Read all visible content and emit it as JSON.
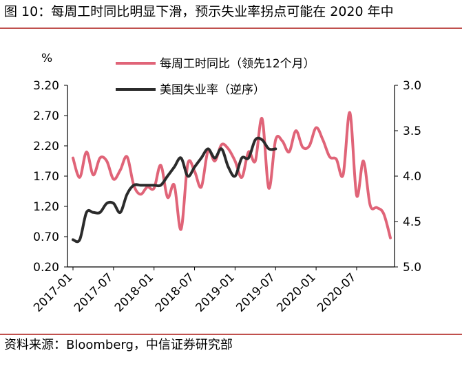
{
  "title": "图 10：每周工时同比明显下滑，预示失业率拐点可能在 2020 年中",
  "source": "资料来源：Bloomberg，中信证券研究部",
  "chart_data": {
    "type": "line",
    "left_unit": "%",
    "x_ticks": [
      "2017-01",
      "2017-07",
      "2018-01",
      "2018-07",
      "2019-01",
      "2019-07",
      "2020-01",
      "2020-07"
    ],
    "x_range": [
      "2017-01",
      "2020-12"
    ],
    "left_axis": {
      "min": 0.2,
      "max": 3.2,
      "ticks": [
        "3.20",
        "2.70",
        "2.20",
        "1.70",
        "1.20",
        "0.70",
        "0.20"
      ]
    },
    "right_axis": {
      "min": 3.0,
      "max": 5.0,
      "reversed": true,
      "ticks": [
        "3.0",
        "3.5",
        "4.0",
        "4.5",
        "5.0"
      ]
    },
    "legend_position": "top",
    "colors": {
      "hours": "#e06478",
      "unemployment": "#2b2b2b",
      "rule": "#c0504d"
    },
    "series": [
      {
        "name": "每周工时同比（领先12个月）",
        "axis": "left",
        "x": [
          "2017-01",
          "2017-02",
          "2017-03",
          "2017-04",
          "2017-05",
          "2017-06",
          "2017-07",
          "2017-08",
          "2017-09",
          "2017-10",
          "2017-11",
          "2017-12",
          "2018-01",
          "2018-02",
          "2018-03",
          "2018-04",
          "2018-05",
          "2018-06",
          "2018-07",
          "2018-08",
          "2018-09",
          "2018-10",
          "2018-11",
          "2018-12",
          "2019-01",
          "2019-02",
          "2019-03",
          "2019-04",
          "2019-05",
          "2019-06",
          "2019-07",
          "2019-08",
          "2019-09",
          "2019-10",
          "2019-11",
          "2019-12",
          "2020-01",
          "2020-02",
          "2020-03",
          "2020-04",
          "2020-05",
          "2020-06",
          "2020-07",
          "2020-08",
          "2020-09",
          "2020-10",
          "2020-11",
          "2020-12"
        ],
        "y": [
          2.0,
          1.68,
          2.1,
          1.72,
          2.0,
          1.95,
          1.65,
          1.8,
          2.02,
          1.55,
          1.4,
          1.52,
          1.5,
          1.88,
          1.35,
          1.55,
          0.82,
          1.9,
          1.78,
          1.52,
          2.12,
          1.95,
          2.22,
          2.15,
          1.95,
          1.68,
          2.1,
          1.95,
          2.65,
          1.5,
          2.3,
          2.28,
          2.1,
          2.45,
          2.18,
          2.2,
          2.5,
          2.3,
          2.02,
          1.98,
          1.72,
          2.75,
          1.38,
          1.95,
          1.22,
          1.18,
          1.08,
          0.68
        ]
      },
      {
        "name": "美国失业率（逆序）",
        "axis": "right",
        "x": [
          "2017-01",
          "2017-02",
          "2017-03",
          "2017-04",
          "2017-05",
          "2017-06",
          "2017-07",
          "2017-08",
          "2017-09",
          "2017-10",
          "2017-11",
          "2017-12",
          "2018-01",
          "2018-02",
          "2018-03",
          "2018-04",
          "2018-05",
          "2018-06",
          "2018-07",
          "2018-08",
          "2018-09",
          "2018-10",
          "2018-11",
          "2018-12",
          "2019-01",
          "2019-02",
          "2019-03",
          "2019-04",
          "2019-05",
          "2019-06",
          "2019-07"
        ],
        "y": [
          4.7,
          4.7,
          4.4,
          4.4,
          4.4,
          4.3,
          4.3,
          4.4,
          4.2,
          4.1,
          4.1,
          4.1,
          4.1,
          4.1,
          4.0,
          3.9,
          3.8,
          4.0,
          3.9,
          3.8,
          3.7,
          3.8,
          3.7,
          3.9,
          4.0,
          3.8,
          3.8,
          3.6,
          3.6,
          3.7,
          3.7
        ]
      }
    ]
  }
}
